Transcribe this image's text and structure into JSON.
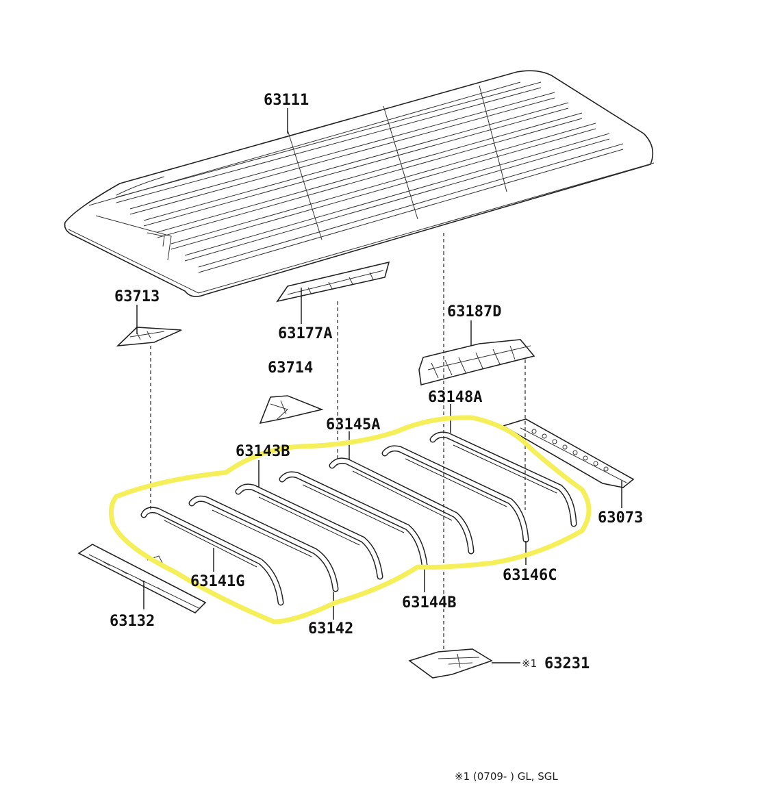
{
  "diagram": {
    "parts": {
      "roof_panel": "63111",
      "bracket_left": "63713",
      "reinforcement_front": "63177A",
      "bracket_center": "63714",
      "reinforcement_rear": "63187D",
      "bow_148a": "63148A",
      "bow_145a": "63145A",
      "bow_143b": "63143B",
      "rear_header": "63073",
      "bow_141g": "63141G",
      "bow_142": "63142",
      "bow_144b": "63144B",
      "bow_146c": "63146C",
      "front_header": "63132",
      "plate_231": "63231"
    },
    "plate_marker": "※1",
    "footnote": "※1 (0709-     ) GL, SGL",
    "highlight_color": "#f5ef5a"
  }
}
